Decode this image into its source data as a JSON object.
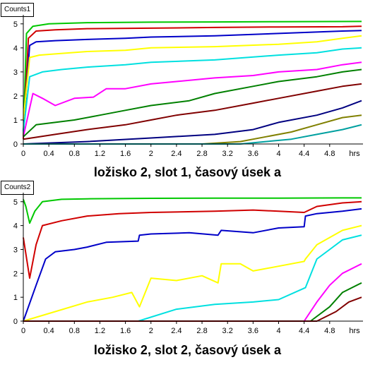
{
  "chart_data": [
    {
      "type": "line",
      "label": "Counts1",
      "caption": "ložisko 2, slot 1, časový úsek a",
      "xunit": "hrs",
      "xlim": [
        0,
        5.3
      ],
      "ylim": [
        0,
        5.2
      ],
      "xticks": [
        "0",
        "0.4",
        "0.8",
        "1.2",
        "1.6",
        "2",
        "2.4",
        "2.8",
        "3.2",
        "3.6",
        "4",
        "4.4",
        "4.8"
      ],
      "yticks": [
        "0",
        "1",
        "2",
        "3",
        "4",
        "5"
      ],
      "series": [
        {
          "color": "#00c800",
          "x": [
            0,
            0.05,
            0.15,
            0.4,
            1,
            2,
            3,
            4,
            5.3
          ],
          "y": [
            0.3,
            4.6,
            4.9,
            5.0,
            5.05,
            5.07,
            5.08,
            5.09,
            5.1
          ]
        },
        {
          "color": "#d00000",
          "x": [
            0,
            0.08,
            0.2,
            0.5,
            1,
            2,
            3,
            4,
            5,
            5.3
          ],
          "y": [
            0.2,
            4.4,
            4.7,
            4.75,
            4.8,
            4.82,
            4.85,
            4.87,
            4.88,
            4.9
          ]
        },
        {
          "color": "#0000c8",
          "x": [
            0,
            0.1,
            0.2,
            0.5,
            1,
            1.6,
            2,
            3,
            4,
            5,
            5.3
          ],
          "y": [
            0.5,
            4.1,
            4.25,
            4.3,
            4.35,
            4.4,
            4.45,
            4.5,
            4.6,
            4.7,
            4.72
          ]
        },
        {
          "color": "#ffff00",
          "x": [
            0,
            0.1,
            0.25,
            0.5,
            1,
            1.6,
            2,
            3,
            4,
            4.6,
            5,
            5.3
          ],
          "y": [
            1.0,
            3.6,
            3.7,
            3.75,
            3.85,
            3.9,
            4.0,
            4.05,
            4.15,
            4.25,
            4.4,
            4.5
          ]
        },
        {
          "color": "#00e0e0",
          "x": [
            0,
            0.1,
            0.3,
            0.6,
            1,
            1.6,
            2,
            3,
            4,
            4.6,
            5,
            5.3
          ],
          "y": [
            0.5,
            2.8,
            3.0,
            3.1,
            3.2,
            3.3,
            3.4,
            3.5,
            3.7,
            3.8,
            3.95,
            4.0
          ]
        },
        {
          "color": "#ff00ff",
          "x": [
            0,
            0.15,
            0.3,
            0.5,
            0.8,
            1.1,
            1.3,
            1.6,
            2,
            2.4,
            3,
            3.6,
            4,
            4.6,
            5,
            5.3
          ],
          "y": [
            0.3,
            2.1,
            1.9,
            1.6,
            1.9,
            1.95,
            2.3,
            2.3,
            2.5,
            2.6,
            2.75,
            2.85,
            3.0,
            3.1,
            3.3,
            3.4
          ]
        },
        {
          "color": "#008000",
          "x": [
            0,
            0.2,
            0.5,
            0.8,
            1.2,
            1.6,
            2,
            2.6,
            3,
            3.6,
            4,
            4.6,
            5,
            5.3
          ],
          "y": [
            0.3,
            0.8,
            0.9,
            1.0,
            1.2,
            1.4,
            1.6,
            1.8,
            2.1,
            2.4,
            2.6,
            2.8,
            3.0,
            3.1
          ]
        },
        {
          "color": "#800000",
          "x": [
            0,
            0.5,
            1,
            1.6,
            2,
            2.4,
            3,
            3.6,
            4,
            4.6,
            5,
            5.3
          ],
          "y": [
            0.2,
            0.4,
            0.6,
            0.8,
            1.0,
            1.2,
            1.4,
            1.7,
            1.9,
            2.2,
            2.4,
            2.5
          ]
        },
        {
          "color": "#000080",
          "x": [
            0,
            1,
            2,
            3,
            3.6,
            4,
            4.6,
            5,
            5.3
          ],
          "y": [
            0,
            0.1,
            0.25,
            0.4,
            0.6,
            0.9,
            1.2,
            1.5,
            1.8
          ]
        },
        {
          "color": "#808000",
          "x": [
            0,
            2.8,
            3.4,
            3.8,
            4.2,
            4.6,
            5,
            5.3
          ],
          "y": [
            0,
            0,
            0.1,
            0.3,
            0.5,
            0.8,
            1.1,
            1.2
          ]
        },
        {
          "color": "#00a0a0",
          "x": [
            0,
            3.4,
            3.8,
            4.2,
            4.6,
            5,
            5.3
          ],
          "y": [
            0,
            0,
            0.1,
            0.2,
            0.4,
            0.6,
            0.8
          ]
        }
      ]
    },
    {
      "type": "line",
      "label": "Counts2",
      "caption": "ložisko 2, slot 2, časový úsek a",
      "xunit": "hrs",
      "xlim": [
        0,
        5.3
      ],
      "ylim": [
        0,
        5.2
      ],
      "xticks": [
        "0",
        "0.4",
        "0.8",
        "1.2",
        "1.6",
        "2",
        "2.4",
        "2.8",
        "3.2",
        "3.6",
        "4",
        "4.4",
        "4.8"
      ],
      "yticks": [
        "0",
        "1",
        "2",
        "3",
        "4",
        "5"
      ],
      "series": [
        {
          "color": "#00c800",
          "x": [
            0,
            0.04,
            0.1,
            0.18,
            0.3,
            0.6,
            1,
            2,
            3,
            4,
            5,
            5.3
          ],
          "y": [
            5.1,
            4.8,
            4.1,
            4.6,
            5.0,
            5.1,
            5.12,
            5.14,
            5.15,
            5.15,
            5.16,
            5.16
          ]
        },
        {
          "color": "#d00000",
          "x": [
            0,
            0.1,
            0.2,
            0.3,
            0.6,
            1,
            1.5,
            2,
            3,
            3.6,
            4,
            4.4,
            4.6,
            5,
            5.3
          ],
          "y": [
            3.5,
            1.8,
            3.2,
            4.0,
            4.2,
            4.4,
            4.5,
            4.55,
            4.6,
            4.65,
            4.6,
            4.55,
            4.8,
            4.95,
            5.0
          ]
        },
        {
          "color": "#0000c8",
          "x": [
            0,
            0.2,
            0.35,
            0.5,
            0.8,
            1,
            1.3,
            1.8,
            1.82,
            2,
            2.6,
            3.05,
            3.1,
            3.6,
            4,
            4.4,
            4.42,
            4.6,
            5,
            5.3
          ],
          "y": [
            0,
            1.5,
            2.6,
            2.9,
            3.0,
            3.1,
            3.3,
            3.35,
            3.6,
            3.65,
            3.7,
            3.6,
            3.8,
            3.7,
            3.9,
            3.95,
            4.4,
            4.5,
            4.6,
            4.7
          ]
        },
        {
          "color": "#ffff00",
          "x": [
            0,
            0.5,
            1,
            1.4,
            1.7,
            1.82,
            2,
            2.4,
            2.8,
            3.05,
            3.1,
            3.4,
            3.6,
            4,
            4.4,
            4.42,
            4.6,
            5,
            5.3
          ],
          "y": [
            0,
            0.4,
            0.8,
            1.0,
            1.2,
            0.6,
            1.8,
            1.7,
            1.9,
            1.6,
            2.4,
            2.4,
            2.1,
            2.3,
            2.5,
            2.6,
            3.2,
            3.8,
            4.0
          ]
        },
        {
          "color": "#00e0e0",
          "x": [
            0,
            1.8,
            2.4,
            3.0,
            3.6,
            4.0,
            4.42,
            4.6,
            4.8,
            5,
            5.3
          ],
          "y": [
            0,
            0,
            0.5,
            0.7,
            0.8,
            0.9,
            1.4,
            2.6,
            3.0,
            3.4,
            3.6
          ]
        },
        {
          "color": "#ff00ff",
          "x": [
            0,
            4.4,
            4.6,
            4.8,
            5,
            5.3
          ],
          "y": [
            0,
            0,
            0.8,
            1.5,
            2.0,
            2.4
          ]
        },
        {
          "color": "#008000",
          "x": [
            0,
            4.5,
            4.8,
            5,
            5.3
          ],
          "y": [
            0,
            0,
            0.6,
            1.2,
            1.6
          ]
        },
        {
          "color": "#800000",
          "x": [
            0,
            4.6,
            4.9,
            5.1,
            5.3
          ],
          "y": [
            0,
            0,
            0.4,
            0.8,
            1.0
          ]
        }
      ]
    }
  ]
}
